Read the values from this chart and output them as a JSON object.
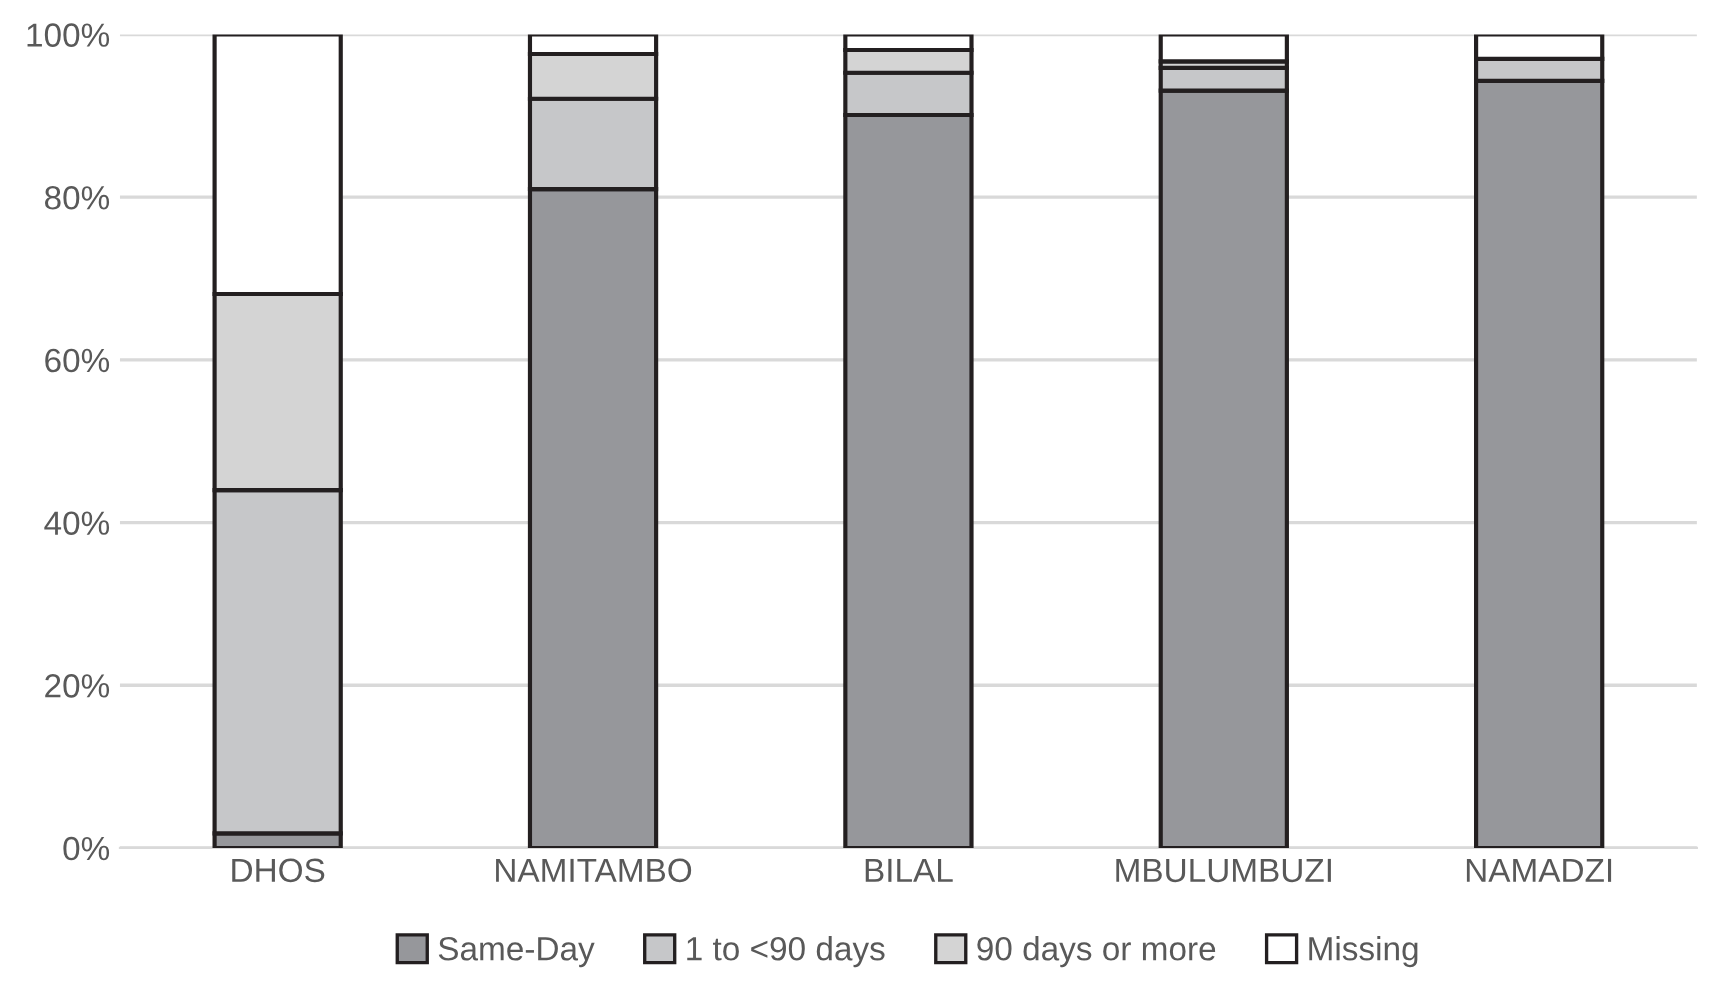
{
  "chart_data": {
    "type": "bar",
    "stacked": true,
    "categories": [
      "DHOS",
      "NAMITAMBO",
      "BILAL",
      "MBULUMBUZI",
      "NAMADZI"
    ],
    "series": [
      {
        "name": "Same-Day",
        "color": "#96979b",
        "values": [
          1.8,
          81.0,
          90.1,
          93.1,
          94.3
        ]
      },
      {
        "name": "1 to <90 days",
        "color": "#c6c7c9",
        "values": [
          42.2,
          11.1,
          5.2,
          2.8,
          2.7
        ]
      },
      {
        "name": "90 days or more",
        "color": "#d4d4d4",
        "values": [
          24.1,
          5.5,
          2.8,
          0.8,
          0
        ]
      },
      {
        "name": "Missing",
        "color": "#ffffff",
        "values": [
          31.9,
          2.4,
          1.9,
          3.3,
          3.0
        ]
      }
    ],
    "ylim": [
      0,
      100
    ],
    "yticks": [
      {
        "value": 0,
        "label": "0%"
      },
      {
        "value": 20,
        "label": "20%"
      },
      {
        "value": 40,
        "label": "40%"
      },
      {
        "value": 60,
        "label": "60%"
      },
      {
        "value": 80,
        "label": "80%"
      },
      {
        "value": 100,
        "label": "100%"
      }
    ],
    "grid": "y",
    "legend": "bottom"
  }
}
